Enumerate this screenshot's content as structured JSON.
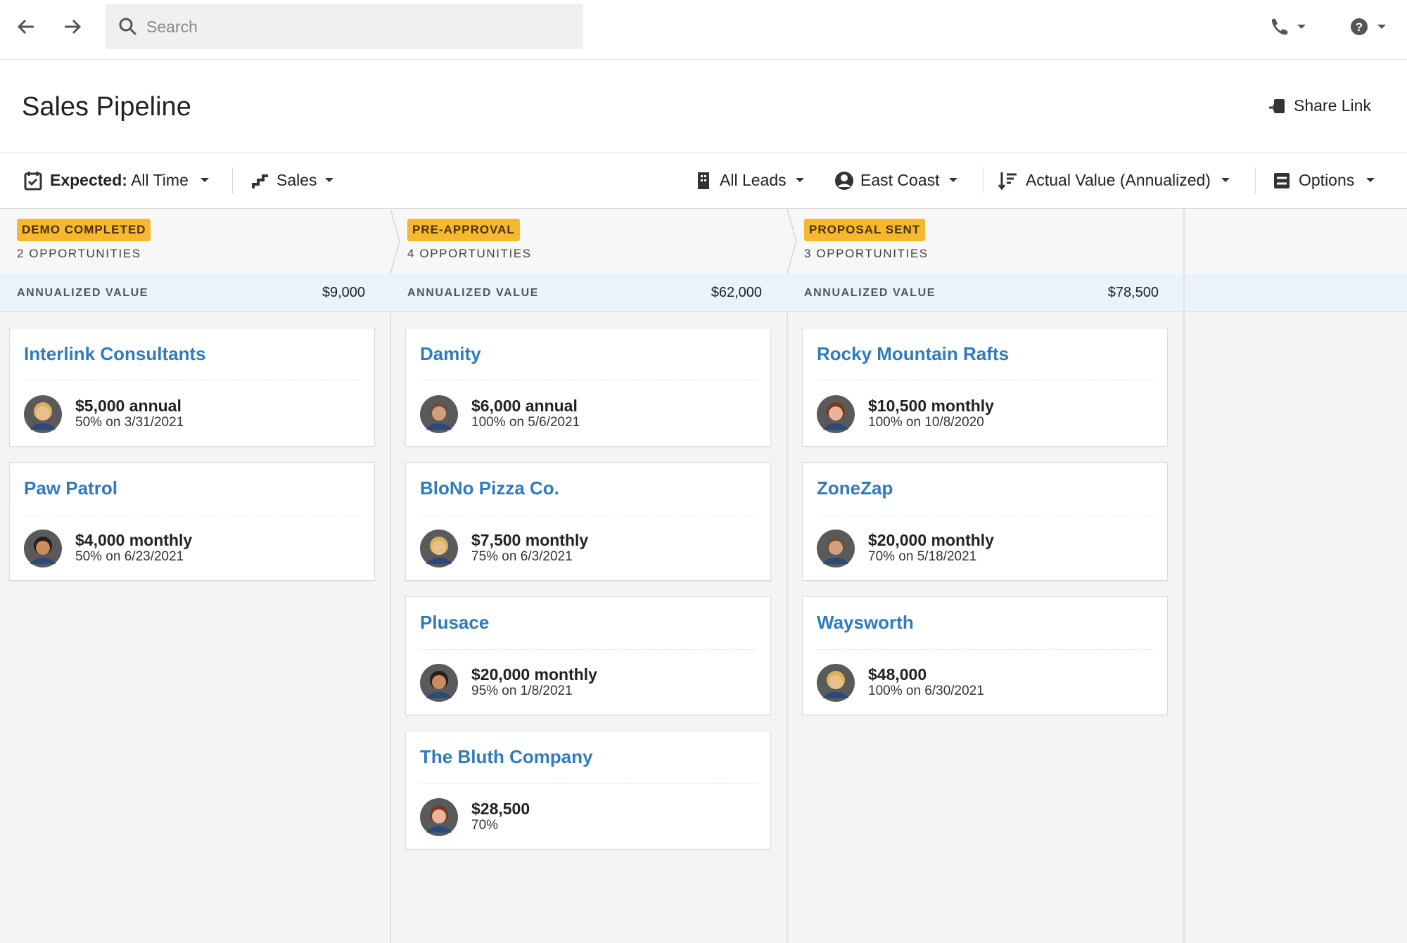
{
  "toolbar": {
    "search_placeholder": "Search"
  },
  "header": {
    "title": "Sales Pipeline",
    "share": "Share Link"
  },
  "filters": {
    "expected_label": "Expected:",
    "expected_value": "All Time",
    "pipeline": "Sales",
    "leads": "All Leads",
    "region": "East Coast",
    "sort": "Actual Value (Annualized)",
    "options": "Options"
  },
  "columns": [
    {
      "stage": "DEMO COMPLETED",
      "count": "2 OPPORTUNITIES",
      "value_label": "ANNUALIZED VALUE",
      "value": "$9,000",
      "cards": [
        {
          "title": "Interlink Consultants",
          "amount": "$5,000 annual",
          "detail": "50% on 3/31/2021"
        },
        {
          "title": "Paw Patrol",
          "amount": "$4,000 monthly",
          "detail": "50% on 6/23/2021"
        }
      ]
    },
    {
      "stage": "PRE-APPROVAL",
      "count": "4 OPPORTUNITIES",
      "value_label": "ANNUALIZED VALUE",
      "value": "$62,000",
      "cards": [
        {
          "title": "Damity",
          "amount": "$6,000 annual",
          "detail": "100% on 5/6/2021"
        },
        {
          "title": "BloNo Pizza Co.",
          "amount": "$7,500 monthly",
          "detail": "75% on 6/3/2021"
        },
        {
          "title": "Plusace",
          "amount": "$20,000 monthly",
          "detail": "95% on 1/8/2021"
        },
        {
          "title": "The Bluth Company",
          "amount": "$28,500",
          "detail": "70%"
        }
      ]
    },
    {
      "stage": "PROPOSAL SENT",
      "count": "3 OPPORTUNITIES",
      "value_label": "ANNUALIZED VALUE",
      "value": "$78,500",
      "cards": [
        {
          "title": "Rocky Mountain Rafts",
          "amount": "$10,500 monthly",
          "detail": "100% on 10/8/2020"
        },
        {
          "title": "ZoneZap",
          "amount": "$20,000 monthly",
          "detail": "70% on 5/18/2021"
        },
        {
          "title": "Waysworth",
          "amount": "$48,000",
          "detail": "100% on 6/30/2021"
        }
      ]
    }
  ]
}
